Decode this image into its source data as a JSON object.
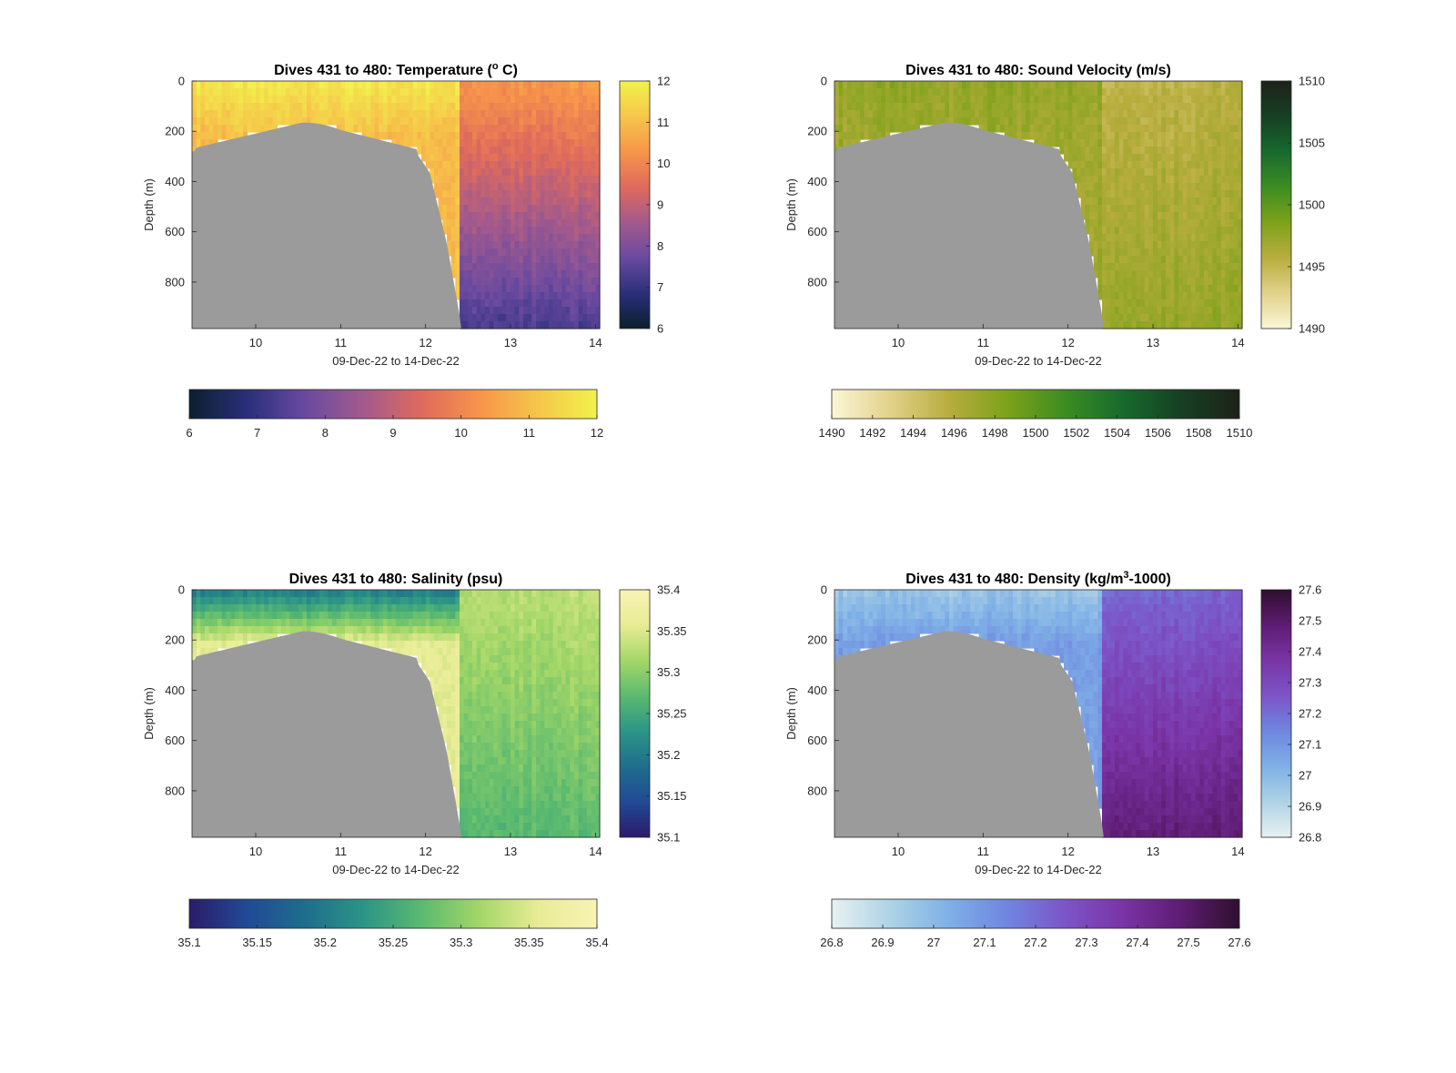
{
  "figure": {
    "background": "#ffffff",
    "bathymetry_color": "#9b9b9b"
  },
  "chart_data": [
    {
      "type": "heatmap",
      "title": "Dives 431 to 480: Temperature (",
      "title_sup": "o",
      "title_after": " C)",
      "xlabel": "09-Dec-22 to 14-Dec-22",
      "ylabel": "Depth (m)",
      "xlim": [
        9.25,
        14.05
      ],
      "ylim": [
        0,
        985
      ],
      "y_reversed": true,
      "xticks": [
        "10",
        "11",
        "12",
        "13",
        "14"
      ],
      "yticks": [
        "0",
        "200",
        "400",
        "600",
        "800"
      ],
      "colorbar": {
        "range": [
          6,
          12
        ],
        "ticks": [
          "6",
          "7",
          "8",
          "9",
          "10",
          "11",
          "12"
        ],
        "stops": [
          "#0b1f2e",
          "#2a2f7a",
          "#6a4aa0",
          "#a35a8c",
          "#df6a5c",
          "#f7954a",
          "#f6c64a",
          "#f1f24d"
        ]
      },
      "hcolorbar": {
        "ticks": [
          "6",
          "7",
          "8",
          "9",
          "10",
          "11",
          "12"
        ]
      },
      "fields": {
        "surface": 11.8,
        "upper_mid": 11.0,
        "deep_start": 10.4,
        "deep_end": 7.3
      }
    },
    {
      "type": "heatmap",
      "title": "Dives 431 to 480: Sound Velocity (m/s)",
      "title_sup": "",
      "title_after": "",
      "xlabel": "09-Dec-22 to 14-Dec-22",
      "ylabel": "Depth (m)",
      "xlim": [
        9.25,
        14.05
      ],
      "ylim": [
        0,
        985
      ],
      "y_reversed": true,
      "xticks": [
        "10",
        "11",
        "12",
        "13",
        "14"
      ],
      "yticks": [
        "0",
        "200",
        "400",
        "600",
        "800"
      ],
      "colorbar": {
        "range": [
          1490,
          1510
        ],
        "ticks": [
          "1490",
          "1495",
          "1500",
          "1505",
          "1510"
        ],
        "stops": [
          "#fbf6d6",
          "#e1d28a",
          "#b8ad3e",
          "#7da21a",
          "#3d8d22",
          "#176a2e",
          "#173f23",
          "#1d2218"
        ]
      },
      "hcolorbar": {
        "ticks": [
          "1490",
          "1492",
          "1494",
          "1496",
          "1498",
          "1500",
          "1502",
          "1504",
          "1506",
          "1508",
          "1510"
        ]
      },
      "fields": {
        "surface": 1497.5,
        "upper_mid": 1497.0,
        "deep_start": 1495.5,
        "deep_end": 1497.5
      }
    },
    {
      "type": "heatmap",
      "title": "Dives 431 to 480: Salinity (psu)",
      "title_sup": "",
      "title_after": "",
      "xlabel": "09-Dec-22 to 14-Dec-22",
      "ylabel": "Depth (m)",
      "xlim": [
        9.25,
        14.05
      ],
      "ylim": [
        0,
        985
      ],
      "y_reversed": true,
      "xticks": [
        "10",
        "11",
        "12",
        "13",
        "14"
      ],
      "yticks": [
        "0",
        "200",
        "400",
        "600",
        "800"
      ],
      "colorbar": {
        "range": [
          35.1,
          35.4
        ],
        "ticks": [
          "35.1",
          "35.15",
          "35.2",
          "35.25",
          "35.3",
          "35.35",
          "35.4"
        ],
        "stops": [
          "#2a1b6a",
          "#214a96",
          "#1e6e8c",
          "#2c9586",
          "#5bba6f",
          "#a4d767",
          "#e8ec95",
          "#f8f3b4"
        ]
      },
      "hcolorbar": {
        "ticks": [
          "35.1",
          "35.15",
          "35.2",
          "35.25",
          "35.3",
          "35.35",
          "35.4"
        ]
      },
      "fields": {
        "surface": 35.2,
        "upper_mid": 35.36,
        "deep_start": 35.33,
        "deep_end": 35.27
      }
    },
    {
      "type": "heatmap",
      "title": "Dives 431 to 480: Density (kg/m",
      "title_sup": "3",
      "title_after": "-1000)",
      "xlabel": "09-Dec-22 to 14-Dec-22",
      "ylabel": "Depth (m)",
      "xlim": [
        9.25,
        14.05
      ],
      "ylim": [
        0,
        985
      ],
      "y_reversed": true,
      "xticks": [
        "10",
        "11",
        "12",
        "13",
        "14"
      ],
      "yticks": [
        "0",
        "200",
        "400",
        "600",
        "800"
      ],
      "colorbar": {
        "range": [
          26.8,
          27.6
        ],
        "ticks": [
          "26.8",
          "26.9",
          "27",
          "27.1",
          "27.2",
          "27.3",
          "27.4",
          "27.5",
          "27.6"
        ],
        "stops": [
          "#e7f1f1",
          "#aed3e6",
          "#7fb0e6",
          "#6f86e0",
          "#7c55c8",
          "#7a34a6",
          "#5e1c73",
          "#2f0f2e"
        ]
      },
      "hcolorbar": {
        "ticks": [
          "26.8",
          "26.9",
          "27",
          "27.1",
          "27.2",
          "27.3",
          "27.4",
          "27.5",
          "27.6"
        ]
      },
      "fields": {
        "surface": 26.96,
        "upper_mid": 27.08,
        "deep_start": 27.22,
        "deep_end": 27.48
      }
    }
  ]
}
